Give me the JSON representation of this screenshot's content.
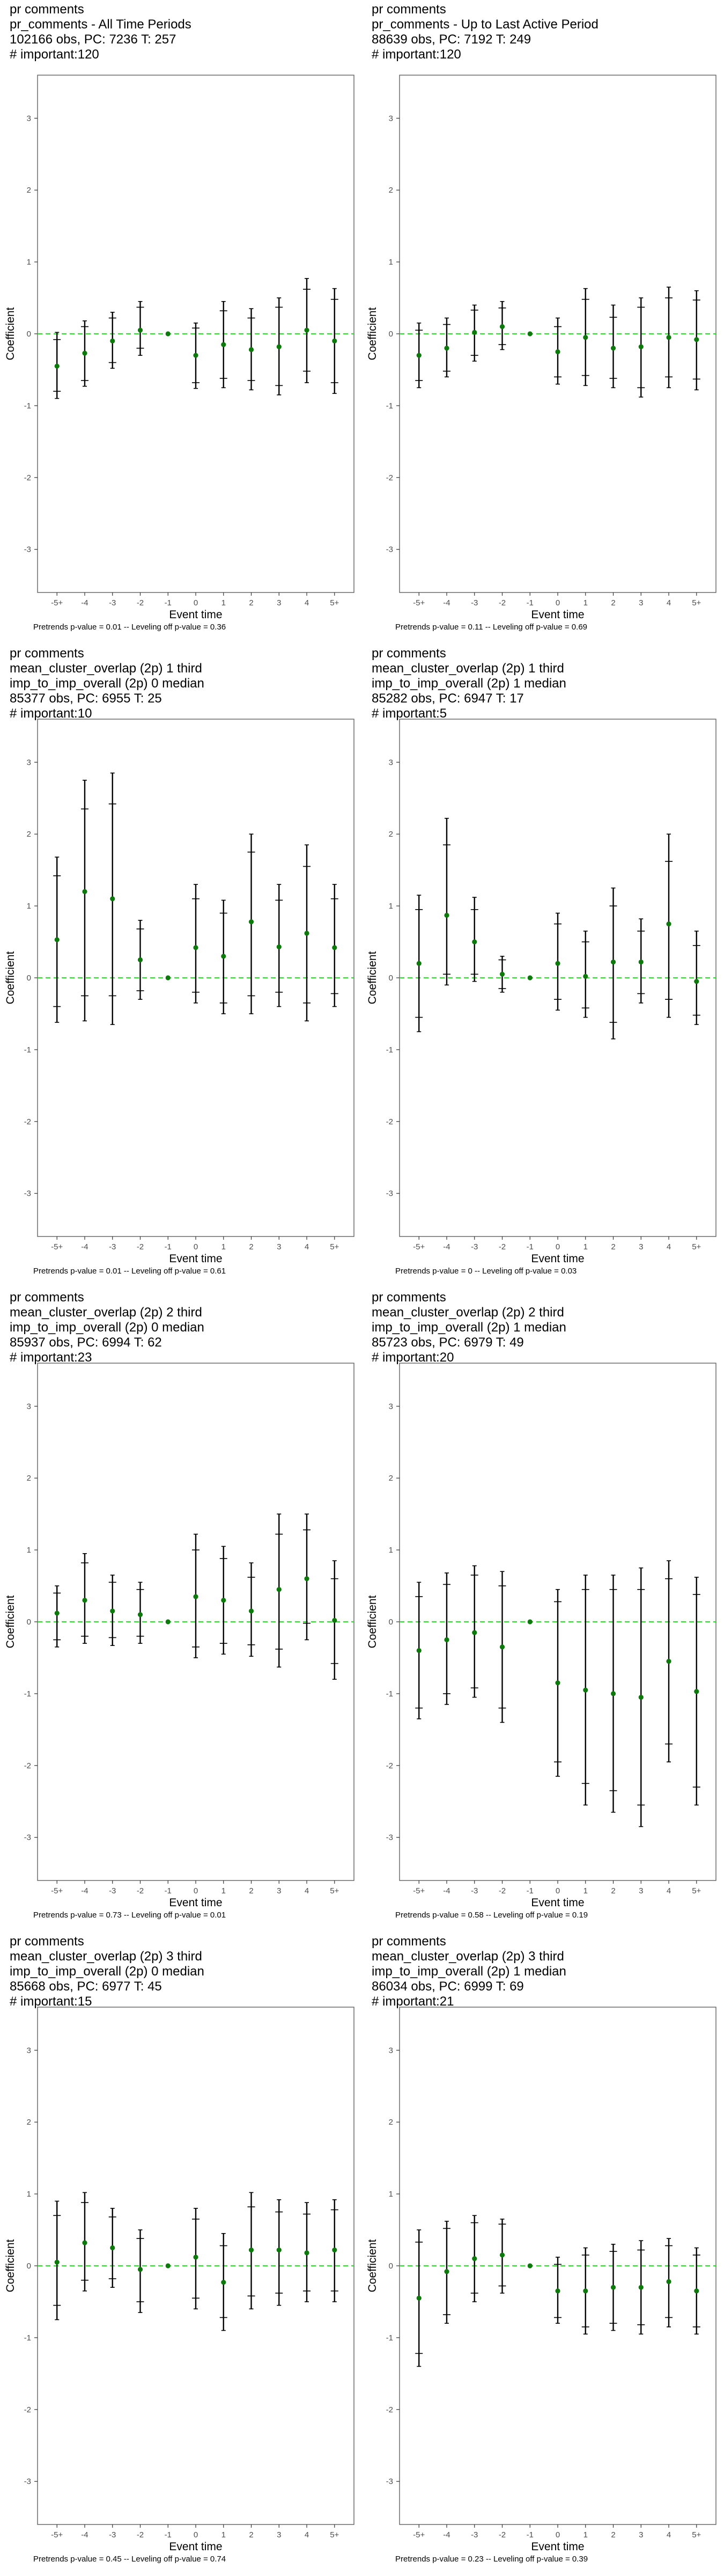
{
  "colors": {
    "point": "#0b7a0b",
    "zero_line": "#33dd33",
    "frame": "#555555",
    "bar": "#000000"
  },
  "chart_data": [
    {
      "type": "scatter",
      "title_lines": [
        "pr comments",
        "pr_comments - All Time Periods",
        "102166 obs, PC: 7236 T: 257",
        "# important:120"
      ],
      "xlabel": "Event time",
      "ylabel": "Coefficient",
      "categories": [
        "-5+",
        "-4",
        "-3",
        "-2",
        "-1",
        "0",
        "1",
        "2",
        "3",
        "4",
        "5+"
      ],
      "yticks": [
        3,
        2,
        1,
        0,
        -1,
        -2,
        -3
      ],
      "ylim": [
        -3.6,
        3.6
      ],
      "values": [
        -0.45,
        -0.27,
        -0.1,
        0.05,
        0,
        -0.3,
        -0.15,
        -0.22,
        -0.18,
        0.05,
        -0.1
      ],
      "ci95_low": [
        -0.9,
        -0.73,
        -0.48,
        -0.3,
        0,
        -0.76,
        -0.75,
        -0.78,
        -0.85,
        -0.68,
        -0.83
      ],
      "ci95_high": [
        0.02,
        0.18,
        0.3,
        0.45,
        0,
        0.15,
        0.45,
        0.35,
        0.5,
        0.77,
        0.63
      ],
      "ci90_low": [
        -0.8,
        -0.65,
        -0.4,
        -0.2,
        0,
        -0.68,
        -0.62,
        -0.65,
        -0.72,
        -0.52,
        -0.68
      ],
      "ci90_high": [
        -0.08,
        0.1,
        0.22,
        0.37,
        0,
        0.08,
        0.32,
        0.22,
        0.37,
        0.62,
        0.48
      ],
      "note": "Pretrends p-value = 0.01 -- Leveling off p-value = 0.36"
    },
    {
      "type": "scatter",
      "title_lines": [
        "pr comments",
        "pr_comments - Up to Last Active Period",
        "88639 obs, PC: 7192 T: 249",
        "# important:120"
      ],
      "xlabel": "Event time",
      "ylabel": "Coefficient",
      "categories": [
        "-5+",
        "-4",
        "-3",
        "-2",
        "-1",
        "0",
        "1",
        "2",
        "3",
        "4",
        "5+"
      ],
      "yticks": [
        3,
        2,
        1,
        0,
        -1,
        -2,
        -3
      ],
      "ylim": [
        -3.6,
        3.6
      ],
      "values": [
        -0.3,
        -0.2,
        0.02,
        0.1,
        0,
        -0.25,
        -0.05,
        -0.2,
        -0.18,
        -0.05,
        -0.08
      ],
      "ci95_low": [
        -0.75,
        -0.6,
        -0.38,
        -0.22,
        0,
        -0.7,
        -0.72,
        -0.75,
        -0.88,
        -0.75,
        -0.78
      ],
      "ci95_high": [
        0.15,
        0.22,
        0.4,
        0.45,
        0,
        0.22,
        0.63,
        0.4,
        0.5,
        0.65,
        0.6
      ],
      "ci90_low": [
        -0.65,
        -0.52,
        -0.3,
        -0.15,
        0,
        -0.6,
        -0.58,
        -0.62,
        -0.75,
        -0.6,
        -0.63
      ],
      "ci90_high": [
        0.05,
        0.13,
        0.33,
        0.36,
        0,
        0.1,
        0.48,
        0.23,
        0.37,
        0.5,
        0.47
      ],
      "note": "Pretrends p-value = 0.11 -- Leveling off p-value = 0.69"
    },
    {
      "type": "scatter",
      "title_lines": [
        "pr comments",
        "mean_cluster_overlap (2p) 1 third",
        "imp_to_imp_overall (2p) 0 median",
        "85377 obs, PC: 6955 T: 25",
        "# important:10"
      ],
      "xlabel": "Event time",
      "ylabel": "Coefficient",
      "categories": [
        "-5+",
        "-4",
        "-3",
        "-2",
        "-1",
        "0",
        "1",
        "2",
        "3",
        "4",
        "5+"
      ],
      "yticks": [
        3,
        2,
        1,
        0,
        -1,
        -2,
        -3
      ],
      "ylim": [
        -3.6,
        3.6
      ],
      "values": [
        0.53,
        1.2,
        1.1,
        0.25,
        0,
        0.42,
        0.3,
        0.78,
        0.43,
        0.62,
        0.42
      ],
      "ci95_low": [
        -0.62,
        -0.6,
        -0.65,
        -0.3,
        0,
        -0.35,
        -0.5,
        -0.5,
        -0.4,
        -0.6,
        -0.4
      ],
      "ci95_high": [
        1.68,
        2.75,
        2.85,
        0.8,
        0,
        1.3,
        1.08,
        2.0,
        1.3,
        1.85,
        1.3
      ],
      "ci90_low": [
        -0.4,
        -0.25,
        -0.25,
        -0.18,
        0,
        -0.2,
        -0.35,
        -0.25,
        -0.2,
        -0.35,
        -0.22
      ],
      "ci90_high": [
        1.42,
        2.35,
        2.42,
        0.68,
        0,
        1.1,
        0.9,
        1.75,
        1.08,
        1.55,
        1.1
      ],
      "note": "Pretrends p-value = 0.01 -- Leveling off p-value = 0.61"
    },
    {
      "type": "scatter",
      "title_lines": [
        "pr comments",
        "mean_cluster_overlap (2p) 1 third",
        "imp_to_imp_overall (2p) 1 median",
        "85282 obs, PC: 6947 T: 17",
        "# important:5"
      ],
      "xlabel": "Event time",
      "ylabel": "Coefficient",
      "categories": [
        "-5+",
        "-4",
        "-3",
        "-2",
        "-1",
        "0",
        "1",
        "2",
        "3",
        "4",
        "5+"
      ],
      "yticks": [
        3,
        2,
        1,
        0,
        -1,
        -2,
        -3
      ],
      "ylim": [
        -3.6,
        3.6
      ],
      "values": [
        0.2,
        0.87,
        0.5,
        0.05,
        0,
        0.2,
        0.02,
        0.22,
        0.22,
        0.75,
        -0.05
      ],
      "ci95_low": [
        -0.75,
        -0.1,
        -0.05,
        -0.2,
        0,
        -0.45,
        -0.55,
        -0.85,
        -0.35,
        -0.55,
        -0.65
      ],
      "ci95_high": [
        1.15,
        2.22,
        1.12,
        0.3,
        0,
        0.9,
        0.65,
        1.25,
        0.82,
        2.0,
        0.65
      ],
      "ci90_low": [
        -0.55,
        0.05,
        0.05,
        -0.15,
        0,
        -0.3,
        -0.42,
        -0.62,
        -0.22,
        -0.3,
        -0.52
      ],
      "ci90_high": [
        0.95,
        1.85,
        0.95,
        0.25,
        0,
        0.75,
        0.5,
        1.0,
        0.65,
        1.62,
        0.45
      ],
      "note": "Pretrends p-value = 0 -- Leveling off p-value = 0.03"
    },
    {
      "type": "scatter",
      "title_lines": [
        "pr comments",
        "mean_cluster_overlap (2p) 2 third",
        "imp_to_imp_overall (2p) 0 median",
        "85937 obs, PC: 6994 T: 62",
        "# important:23"
      ],
      "xlabel": "Event time",
      "ylabel": "Coefficient",
      "categories": [
        "-5+",
        "-4",
        "-3",
        "-2",
        "-1",
        "0",
        "1",
        "2",
        "3",
        "4",
        "5+"
      ],
      "yticks": [
        3,
        2,
        1,
        0,
        -1,
        -2,
        -3
      ],
      "ylim": [
        -3.6,
        3.6
      ],
      "values": [
        0.12,
        0.3,
        0.15,
        0.1,
        0,
        0.35,
        0.3,
        0.15,
        0.45,
        0.6,
        0.02
      ],
      "ci95_low": [
        -0.35,
        -0.3,
        -0.33,
        -0.3,
        0,
        -0.5,
        -0.45,
        -0.48,
        -0.63,
        -0.25,
        -0.8
      ],
      "ci95_high": [
        0.5,
        0.95,
        0.65,
        0.55,
        0,
        1.22,
        1.05,
        0.82,
        1.5,
        1.5,
        0.85
      ],
      "ci90_low": [
        -0.25,
        -0.2,
        -0.22,
        -0.2,
        0,
        -0.35,
        -0.3,
        -0.32,
        -0.38,
        -0.02,
        -0.58
      ],
      "ci90_high": [
        0.4,
        0.82,
        0.55,
        0.45,
        0,
        1.0,
        0.88,
        0.62,
        1.22,
        1.28,
        0.6
      ],
      "note": "Pretrends p-value = 0.73 -- Leveling off p-value = 0.01"
    },
    {
      "type": "scatter",
      "title_lines": [
        "pr comments",
        "mean_cluster_overlap (2p) 2 third",
        "imp_to_imp_overall (2p) 1 median",
        "85723 obs, PC: 6979 T: 49",
        "# important:20"
      ],
      "xlabel": "Event time",
      "ylabel": "Coefficient",
      "categories": [
        "-5+",
        "-4",
        "-3",
        "-2",
        "-1",
        "0",
        "1",
        "2",
        "3",
        "4",
        "5+"
      ],
      "yticks": [
        3,
        2,
        1,
        0,
        -1,
        -2,
        -3
      ],
      "ylim": [
        -3.6,
        3.6
      ],
      "values": [
        -0.4,
        -0.25,
        -0.15,
        -0.35,
        0,
        -0.85,
        -0.95,
        -1.0,
        -1.05,
        -0.55,
        -0.97
      ],
      "ci95_low": [
        -1.35,
        -1.15,
        -1.05,
        -1.4,
        0,
        -2.15,
        -2.55,
        -2.65,
        -2.85,
        -1.95,
        -2.55
      ],
      "ci95_high": [
        0.55,
        0.68,
        0.78,
        0.7,
        0,
        0.45,
        0.65,
        0.65,
        0.75,
        0.85,
        0.62
      ],
      "ci90_low": [
        -1.2,
        -1.0,
        -0.92,
        -1.2,
        0,
        -1.95,
        -2.25,
        -2.35,
        -2.55,
        -1.7,
        -2.3
      ],
      "ci90_high": [
        0.35,
        0.52,
        0.65,
        0.5,
        0,
        0.28,
        0.45,
        0.45,
        0.45,
        0.6,
        0.38
      ],
      "note": "Pretrends p-value = 0.58 -- Leveling off p-value = 0.19"
    },
    {
      "type": "scatter",
      "title_lines": [
        "pr comments",
        "mean_cluster_overlap (2p) 3 third",
        "imp_to_imp_overall (2p) 0 median",
        "85668 obs, PC: 6977 T: 45",
        "# important:15"
      ],
      "xlabel": "Event time",
      "ylabel": "Coefficient",
      "categories": [
        "-5+",
        "-4",
        "-3",
        "-2",
        "-1",
        "0",
        "1",
        "2",
        "3",
        "4",
        "5+"
      ],
      "yticks": [
        3,
        2,
        1,
        0,
        -1,
        -2,
        -3
      ],
      "ylim": [
        -3.6,
        3.6
      ],
      "values": [
        0.05,
        0.32,
        0.25,
        -0.05,
        0,
        0.12,
        -0.23,
        0.22,
        0.22,
        0.18,
        0.22
      ],
      "ci95_low": [
        -0.75,
        -0.35,
        -0.3,
        -0.65,
        0,
        -0.6,
        -0.9,
        -0.6,
        -0.55,
        -0.5,
        -0.5
      ],
      "ci95_high": [
        0.9,
        1.02,
        0.8,
        0.5,
        0,
        0.8,
        0.45,
        1.02,
        0.92,
        0.88,
        0.92
      ],
      "ci90_low": [
        -0.55,
        -0.2,
        -0.18,
        -0.5,
        0,
        -0.45,
        -0.72,
        -0.42,
        -0.38,
        -0.35,
        -0.35
      ],
      "ci90_high": [
        0.7,
        0.88,
        0.68,
        0.38,
        0,
        0.65,
        0.28,
        0.82,
        0.75,
        0.72,
        0.78
      ],
      "note": "Pretrends p-value = 0.45 -- Leveling off p-value = 0.74"
    },
    {
      "type": "scatter",
      "title_lines": [
        "pr comments",
        "mean_cluster_overlap (2p) 3 third",
        "imp_to_imp_overall (2p) 1 median",
        "86034 obs, PC: 6999 T: 69",
        "# important:21"
      ],
      "xlabel": "Event time",
      "ylabel": "Coefficient",
      "categories": [
        "-5+",
        "-4",
        "-3",
        "-2",
        "-1",
        "0",
        "1",
        "2",
        "3",
        "4",
        "5+"
      ],
      "yticks": [
        3,
        2,
        1,
        0,
        -1,
        -2,
        -3
      ],
      "ylim": [
        -3.6,
        3.6
      ],
      "values": [
        -0.45,
        -0.08,
        0.1,
        0.15,
        0,
        -0.35,
        -0.35,
        -0.3,
        -0.3,
        -0.22,
        -0.35
      ],
      "ci95_low": [
        -1.4,
        -0.8,
        -0.5,
        -0.38,
        0,
        -0.8,
        -0.95,
        -0.9,
        -0.95,
        -0.85,
        -0.95
      ],
      "ci95_high": [
        0.5,
        0.62,
        0.7,
        0.65,
        0,
        0.12,
        0.25,
        0.3,
        0.35,
        0.38,
        0.25
      ],
      "ci90_low": [
        -1.22,
        -0.68,
        -0.38,
        -0.28,
        0,
        -0.72,
        -0.85,
        -0.8,
        -0.82,
        -0.72,
        -0.85
      ],
      "ci90_high": [
        0.33,
        0.52,
        0.6,
        0.58,
        0,
        0.02,
        0.15,
        0.2,
        0.22,
        0.28,
        0.15
      ],
      "note": "Pretrends p-value = 0.23 -- Leveling off p-value = 0.39"
    }
  ]
}
